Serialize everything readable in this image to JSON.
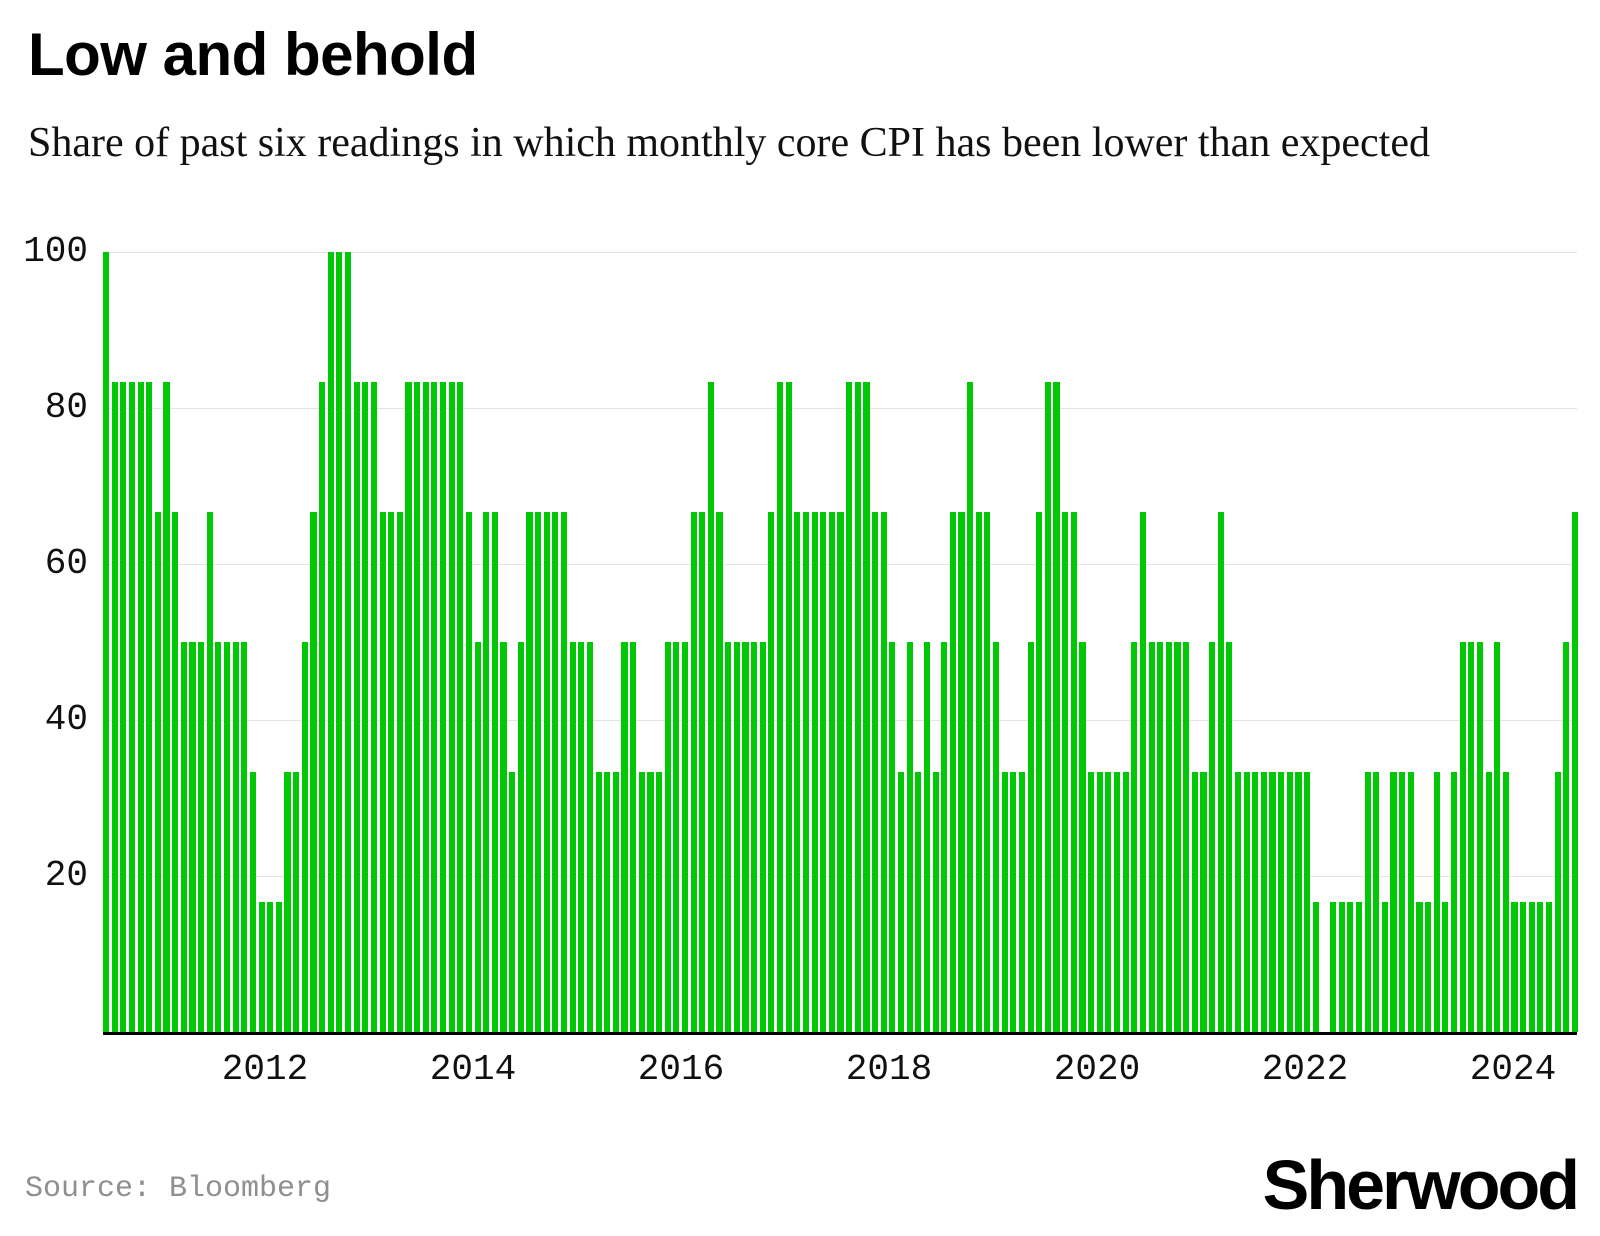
{
  "header": {
    "title": "Low and behold",
    "subtitle": "Share of past six readings in which monthly core CPI has been lower than expected"
  },
  "footer": {
    "source_label": "Source: Bloomberg",
    "brand": "Sherwood"
  },
  "colors": {
    "bar": "#00C805",
    "gridline": "#E4E4E4",
    "axis": "#000000",
    "text": "#111111",
    "muted": "#8F8F8F"
  },
  "chart_data": {
    "type": "bar",
    "title": "Low and behold",
    "subtitle": "Share of past six readings in which monthly core CPI has been lower than expected",
    "source": "Source: Bloomberg",
    "unit": "percent",
    "x_frequency": "monthly",
    "x_start": "2010-07",
    "x_end": "2024-09",
    "missing_months": [
      "2022-04"
    ],
    "ylim": [
      0,
      100
    ],
    "grid": "horizontal",
    "legend": "none",
    "y_ticks": [
      100,
      80,
      60,
      40,
      20
    ],
    "x_ticks": [
      "2012",
      "2014",
      "2016",
      "2018",
      "2020",
      "2022",
      "2024"
    ],
    "values": [
      100,
      83.3,
      83.3,
      83.3,
      83.3,
      83.3,
      66.7,
      83.3,
      66.7,
      50,
      50,
      50,
      66.7,
      50,
      50,
      50,
      50,
      33.3,
      16.7,
      16.7,
      16.7,
      33.3,
      33.3,
      50,
      66.7,
      83.3,
      100,
      100,
      100,
      83.3,
      83.3,
      83.3,
      66.7,
      66.7,
      66.7,
      83.3,
      83.3,
      83.3,
      83.3,
      83.3,
      83.3,
      83.3,
      66.7,
      50,
      66.7,
      66.7,
      50,
      33.3,
      50,
      66.7,
      66.7,
      66.7,
      66.7,
      66.7,
      50,
      50,
      50,
      33.3,
      33.3,
      33.3,
      50,
      50,
      33.3,
      33.3,
      33.3,
      50,
      50,
      50,
      66.7,
      66.7,
      83.3,
      66.7,
      50,
      50,
      50,
      50,
      50,
      66.7,
      83.3,
      83.3,
      66.7,
      66.7,
      66.7,
      66.7,
      66.7,
      66.7,
      83.3,
      83.3,
      83.3,
      66.7,
      66.7,
      50,
      33.3,
      50,
      33.3,
      50,
      33.3,
      50,
      66.7,
      66.7,
      83.3,
      66.7,
      66.7,
      50,
      33.3,
      33.3,
      33.3,
      50,
      66.7,
      83.3,
      83.3,
      66.7,
      66.7,
      50,
      33.3,
      33.3,
      33.3,
      33.3,
      33.3,
      50,
      66.7,
      50,
      50,
      50,
      50,
      50,
      33.3,
      33.3,
      50,
      66.7,
      50,
      33.3,
      33.3,
      33.3,
      33.3,
      33.3,
      33.3,
      33.3,
      33.3,
      33.3,
      16.7,
      null,
      16.7,
      16.7,
      16.7,
      16.7,
      33.3,
      33.3,
      16.7,
      33.3,
      33.3,
      33.3,
      16.7,
      16.7,
      33.3,
      16.7,
      33.3,
      50,
      50,
      50,
      33.3,
      50,
      33.3,
      16.7,
      16.7,
      16.7,
      16.7,
      16.7,
      33.3,
      50,
      66.7
    ]
  }
}
